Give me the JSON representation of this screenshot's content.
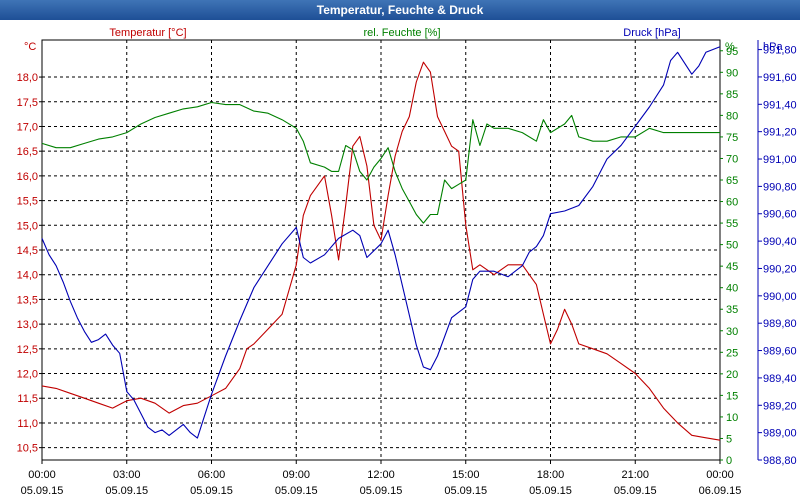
{
  "window": {
    "title": "Temperatur, Feuchte & Druck"
  },
  "colors": {
    "temperature": "#c00000",
    "humidity": "#008000",
    "pressure": "#0000b4",
    "grid": "#000000",
    "titlebar": "#2a5ea6"
  },
  "axes": {
    "left": {
      "unit": "°C",
      "label": "Temperatur [°C]",
      "ticks": [
        "10,5",
        "11,0",
        "11,5",
        "12,0",
        "12,5",
        "13,0",
        "13,5",
        "14,0",
        "14,5",
        "15,0",
        "15,5",
        "16,0",
        "16,5",
        "17,0",
        "17,5",
        "18,0"
      ],
      "ylim": [
        10.25,
        18.75
      ]
    },
    "middle": {
      "unit": "%",
      "label": "rel. Feuchte [%]",
      "ticks": [
        "0",
        "5",
        "10",
        "15",
        "20",
        "25",
        "30",
        "35",
        "40",
        "45",
        "50",
        "55",
        "60",
        "65",
        "70",
        "75",
        "80",
        "85",
        "90",
        "95"
      ],
      "ylim": [
        0,
        97.5
      ]
    },
    "right": {
      "unit": "hPa",
      "label": "Druck [hPa]",
      "ticks": [
        "988,80",
        "989,00",
        "989,20",
        "989,40",
        "989,60",
        "989,80",
        "990,00",
        "990,20",
        "990,40",
        "990,60",
        "990,80",
        "991,00",
        "991,20",
        "991,40",
        "991,60",
        "991,80"
      ],
      "ylim": [
        988.8,
        991.87
      ]
    },
    "x": {
      "ticks": [
        {
          "time": "00:00",
          "date": "05.09.15"
        },
        {
          "time": "03:00",
          "date": "05.09.15"
        },
        {
          "time": "06:00",
          "date": "05.09.15"
        },
        {
          "time": "09:00",
          "date": "05.09.15"
        },
        {
          "time": "12:00",
          "date": "05.09.15"
        },
        {
          "time": "15:00",
          "date": "05.09.15"
        },
        {
          "time": "18:00",
          "date": "05.09.15"
        },
        {
          "time": "21:00",
          "date": "05.09.15"
        },
        {
          "time": "00:00",
          "date": "06.09.15"
        }
      ],
      "xlim_hours": [
        0,
        24
      ]
    }
  },
  "chart_data": {
    "type": "line",
    "title": "Temperatur, Feuchte & Druck",
    "x_unit": "hours since 05.09.15 00:00",
    "grid": true,
    "series": [
      {
        "name": "Temperatur [°C]",
        "axis": "left",
        "points": [
          [
            0,
            11.75
          ],
          [
            0.5,
            11.7
          ],
          [
            1,
            11.6
          ],
          [
            1.5,
            11.5
          ],
          [
            2,
            11.4
          ],
          [
            2.5,
            11.3
          ],
          [
            3,
            11.45
          ],
          [
            3.5,
            11.5
          ],
          [
            4,
            11.4
          ],
          [
            4.5,
            11.2
          ],
          [
            5,
            11.35
          ],
          [
            5.5,
            11.4
          ],
          [
            6,
            11.55
          ],
          [
            6.5,
            11.7
          ],
          [
            7,
            12.1
          ],
          [
            7.25,
            12.5
          ],
          [
            7.5,
            12.6
          ],
          [
            8,
            12.9
          ],
          [
            8.5,
            13.2
          ],
          [
            8.75,
            13.7
          ],
          [
            9,
            14.2
          ],
          [
            9.25,
            15.2
          ],
          [
            9.5,
            15.6
          ],
          [
            10,
            16.0
          ],
          [
            10.25,
            15.2
          ],
          [
            10.5,
            14.3
          ],
          [
            10.75,
            15.4
          ],
          [
            11,
            16.6
          ],
          [
            11.25,
            16.8
          ],
          [
            11.5,
            16.2
          ],
          [
            11.75,
            15.0
          ],
          [
            12,
            14.7
          ],
          [
            12.25,
            15.6
          ],
          [
            12.5,
            16.4
          ],
          [
            12.75,
            16.9
          ],
          [
            13,
            17.2
          ],
          [
            13.25,
            17.9
          ],
          [
            13.5,
            18.3
          ],
          [
            13.75,
            18.1
          ],
          [
            14,
            17.2
          ],
          [
            14.25,
            16.9
          ],
          [
            14.5,
            16.6
          ],
          [
            14.75,
            16.5
          ],
          [
            15,
            15.0
          ],
          [
            15.25,
            14.1
          ],
          [
            15.5,
            14.2
          ],
          [
            16,
            14.0
          ],
          [
            16.5,
            14.2
          ],
          [
            17,
            14.2
          ],
          [
            17.25,
            14.0
          ],
          [
            17.5,
            13.8
          ],
          [
            17.75,
            13.2
          ],
          [
            18,
            12.6
          ],
          [
            18.25,
            12.9
          ],
          [
            18.5,
            13.3
          ],
          [
            18.75,
            13.0
          ],
          [
            19,
            12.6
          ],
          [
            19.5,
            12.5
          ],
          [
            20,
            12.4
          ],
          [
            20.5,
            12.2
          ],
          [
            21,
            12.0
          ],
          [
            21.5,
            11.7
          ],
          [
            22,
            11.3
          ],
          [
            22.5,
            11.0
          ],
          [
            23,
            10.75
          ],
          [
            23.5,
            10.7
          ],
          [
            24,
            10.65
          ]
        ]
      },
      {
        "name": "rel. Feuchte [%]",
        "axis": "middle",
        "points": [
          [
            0,
            73.5
          ],
          [
            0.5,
            72.5
          ],
          [
            1,
            72.5
          ],
          [
            1.5,
            73.5
          ],
          [
            2,
            74.5
          ],
          [
            2.5,
            75
          ],
          [
            3,
            76
          ],
          [
            3.5,
            78
          ],
          [
            4,
            79.5
          ],
          [
            4.5,
            80.5
          ],
          [
            5,
            81.5
          ],
          [
            5.5,
            82
          ],
          [
            6,
            83
          ],
          [
            6.5,
            82.5
          ],
          [
            7,
            82.5
          ],
          [
            7.5,
            81
          ],
          [
            8,
            80.5
          ],
          [
            8.5,
            79
          ],
          [
            9,
            77
          ],
          [
            9.25,
            74
          ],
          [
            9.5,
            69
          ],
          [
            10,
            68
          ],
          [
            10.25,
            67
          ],
          [
            10.5,
            67
          ],
          [
            10.75,
            73
          ],
          [
            11,
            72
          ],
          [
            11.25,
            67
          ],
          [
            11.5,
            65
          ],
          [
            11.75,
            68
          ],
          [
            12,
            70
          ],
          [
            12.25,
            72.5
          ],
          [
            12.5,
            67
          ],
          [
            12.75,
            63
          ],
          [
            13,
            60
          ],
          [
            13.25,
            57
          ],
          [
            13.5,
            55
          ],
          [
            13.75,
            57
          ],
          [
            14,
            57
          ],
          [
            14.25,
            65
          ],
          [
            14.5,
            63
          ],
          [
            14.75,
            64
          ],
          [
            15,
            65
          ],
          [
            15.25,
            79
          ],
          [
            15.5,
            73
          ],
          [
            15.75,
            78
          ],
          [
            16,
            77
          ],
          [
            16.5,
            77
          ],
          [
            17,
            76
          ],
          [
            17.5,
            74
          ],
          [
            17.75,
            79
          ],
          [
            18,
            76
          ],
          [
            18.5,
            78
          ],
          [
            18.75,
            80
          ],
          [
            19,
            75
          ],
          [
            19.5,
            74
          ],
          [
            20,
            74
          ],
          [
            20.5,
            75
          ],
          [
            21,
            75
          ],
          [
            21.5,
            77
          ],
          [
            22,
            76
          ],
          [
            22.5,
            76
          ],
          [
            23,
            76
          ],
          [
            23.5,
            76
          ],
          [
            24,
            76
          ]
        ]
      },
      {
        "name": "Druck [hPa]",
        "axis": "right",
        "points": [
          [
            0,
            990.42
          ],
          [
            0.25,
            990.3
          ],
          [
            0.5,
            990.22
          ],
          [
            0.75,
            990.1
          ],
          [
            1,
            989.96
          ],
          [
            1.25,
            989.84
          ],
          [
            1.5,
            989.74
          ],
          [
            1.75,
            989.66
          ],
          [
            2,
            989.68
          ],
          [
            2.25,
            989.72
          ],
          [
            2.5,
            989.64
          ],
          [
            2.75,
            989.58
          ],
          [
            3,
            989.3
          ],
          [
            3.25,
            989.24
          ],
          [
            3.5,
            989.14
          ],
          [
            3.75,
            989.04
          ],
          [
            4,
            989.0
          ],
          [
            4.25,
            989.02
          ],
          [
            4.5,
            988.98
          ],
          [
            4.75,
            989.02
          ],
          [
            5,
            989.06
          ],
          [
            5.25,
            989.0
          ],
          [
            5.5,
            988.96
          ],
          [
            5.75,
            989.12
          ],
          [
            6,
            989.28
          ],
          [
            6.5,
            989.56
          ],
          [
            7,
            989.82
          ],
          [
            7.5,
            990.06
          ],
          [
            8,
            990.22
          ],
          [
            8.5,
            990.38
          ],
          [
            9,
            990.5
          ],
          [
            9.25,
            990.28
          ],
          [
            9.5,
            990.24
          ],
          [
            10,
            990.3
          ],
          [
            10.5,
            990.42
          ],
          [
            11,
            990.48
          ],
          [
            11.25,
            990.44
          ],
          [
            11.5,
            990.28
          ],
          [
            12,
            990.38
          ],
          [
            12.25,
            990.48
          ],
          [
            12.5,
            990.3
          ],
          [
            12.75,
            990.08
          ],
          [
            13,
            989.86
          ],
          [
            13.25,
            989.64
          ],
          [
            13.5,
            989.48
          ],
          [
            13.75,
            989.46
          ],
          [
            14,
            989.56
          ],
          [
            14.5,
            989.84
          ],
          [
            15,
            989.92
          ],
          [
            15.25,
            990.12
          ],
          [
            15.5,
            990.18
          ],
          [
            16,
            990.18
          ],
          [
            16.5,
            990.14
          ],
          [
            17,
            990.22
          ],
          [
            17.25,
            990.32
          ],
          [
            17.5,
            990.36
          ],
          [
            17.75,
            990.44
          ],
          [
            18,
            990.6
          ],
          [
            18.5,
            990.62
          ],
          [
            19,
            990.66
          ],
          [
            19.5,
            990.8
          ],
          [
            20,
            991.0
          ],
          [
            20.5,
            991.1
          ],
          [
            21,
            991.24
          ],
          [
            21.5,
            991.38
          ],
          [
            22,
            991.54
          ],
          [
            22.25,
            991.72
          ],
          [
            22.5,
            991.78
          ],
          [
            23,
            991.62
          ],
          [
            23.25,
            991.68
          ],
          [
            23.5,
            991.78
          ],
          [
            24,
            991.82
          ]
        ]
      }
    ]
  }
}
